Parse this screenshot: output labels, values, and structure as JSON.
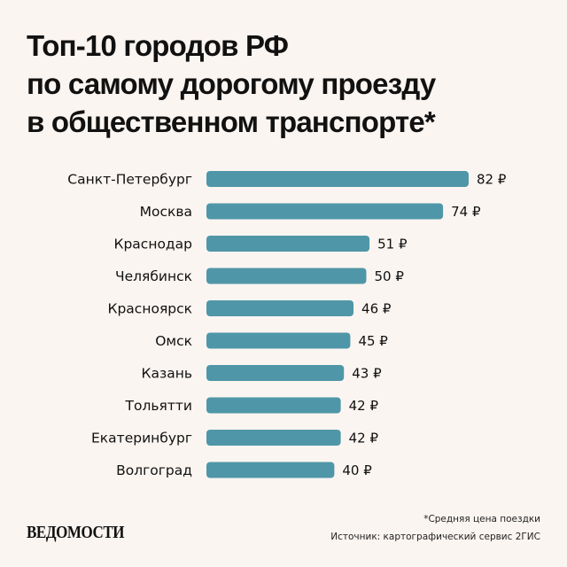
{
  "chart_data": {
    "type": "bar",
    "orientation": "horizontal",
    "title_lines": [
      "Топ-10 городов РФ",
      "по самому дорогому проезду",
      "в общественном транспорте*"
    ],
    "categories": [
      "Санкт-Петербург",
      "Москва",
      "Краснодар",
      "Челябинск",
      "Красноярск",
      "Омск",
      "Казань",
      "Тольятти",
      "Екатеринбург",
      "Волгоград"
    ],
    "values": [
      82,
      74,
      51,
      50,
      46,
      45,
      43,
      42,
      42,
      40
    ],
    "value_suffix": " ₽",
    "bar_color": "#4f97a8",
    "grid": false
  },
  "footer": {
    "logo": "ВЕДОМОСТИ",
    "note": "*Средняя цена поездки",
    "source": "Источник: картографический сервис 2ГИС"
  },
  "colors": {
    "background": "#fbf5f1",
    "text": "#111111"
  }
}
